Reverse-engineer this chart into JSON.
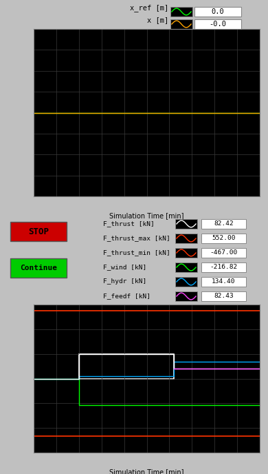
{
  "bg_color": "#c0c0c0",
  "plot_bg": "#000000",
  "grid_color": "#3a3a3a",
  "top_plot": {
    "ylim": [
      -40,
      40
    ],
    "xlim": [
      0,
      100
    ],
    "yticks": [
      -40,
      -30,
      -20,
      -10,
      0,
      10,
      20,
      30,
      40
    ],
    "xticks": [
      0,
      10,
      20,
      30,
      40,
      50,
      60,
      70,
      80,
      90,
      100
    ],
    "xlabel": "Simulation Time [min]",
    "lines": [
      {
        "label": "x_ref [m]",
        "color": "#00ff00",
        "y": 0.0
      },
      {
        "label": "x [m]",
        "color": "#ffa500",
        "y": 0.0
      }
    ],
    "legend": [
      {
        "label": "x_ref [m]",
        "value": "0.0",
        "color": "#00ff00"
      },
      {
        "label": "x [m]",
        "value": "-0.0",
        "color": "#ffa500"
      }
    ]
  },
  "middle": {
    "stop_color": "#cc0000",
    "continue_color": "#00cc00",
    "legend": [
      {
        "label": "F_thrust [kN]",
        "value": "82.42",
        "color": "#ffffff"
      },
      {
        "label": "F_thrust_max [kN]",
        "value": "552.00",
        "color": "#ff3300"
      },
      {
        "label": "F_thrust_min [kN]",
        "value": "-467.00",
        "color": "#ff3300"
      },
      {
        "label": "F_wind [kN]",
        "value": "-216.82",
        "color": "#00ff00"
      },
      {
        "label": "F_hydr [kN]",
        "value": "134.40",
        "color": "#00aaff"
      },
      {
        "label": "F_feedf [kN]",
        "value": "82.43",
        "color": "#ff44ff"
      }
    ]
  },
  "bottom_plot": {
    "ylim": [
      -600,
      600
    ],
    "xlim": [
      0,
      100
    ],
    "yticks": [
      -600,
      -400,
      -200,
      0,
      200,
      400,
      600
    ],
    "xticks": [
      0,
      10,
      20,
      30,
      40,
      50,
      60,
      70,
      80,
      90,
      100
    ],
    "xlabel": "Simulation Time [min]",
    "F_thrust_max_y": 552,
    "F_thrust_min_y": -467,
    "F_wind_data": [
      [
        0,
        20,
        20,
        100
      ],
      [
        0,
        0,
        -217,
        -217
      ]
    ],
    "F_hydr_data": [
      [
        0,
        20,
        20,
        62,
        62,
        100
      ],
      [
        0,
        0,
        20,
        20,
        134,
        134
      ]
    ],
    "F_thrust_data": [
      [
        0,
        20,
        20,
        62,
        62,
        100
      ],
      [
        0,
        0,
        200,
        200,
        82,
        82
      ]
    ],
    "F_feedf_data": [
      [
        62,
        100
      ],
      [
        82,
        82
      ]
    ],
    "F_thrust_color": "#ffffff",
    "F_thrust_max_color": "#ff3300",
    "F_wind_color": "#00ff00",
    "F_hydr_color": "#00aaff",
    "F_feedf_color": "#ff44ff"
  }
}
